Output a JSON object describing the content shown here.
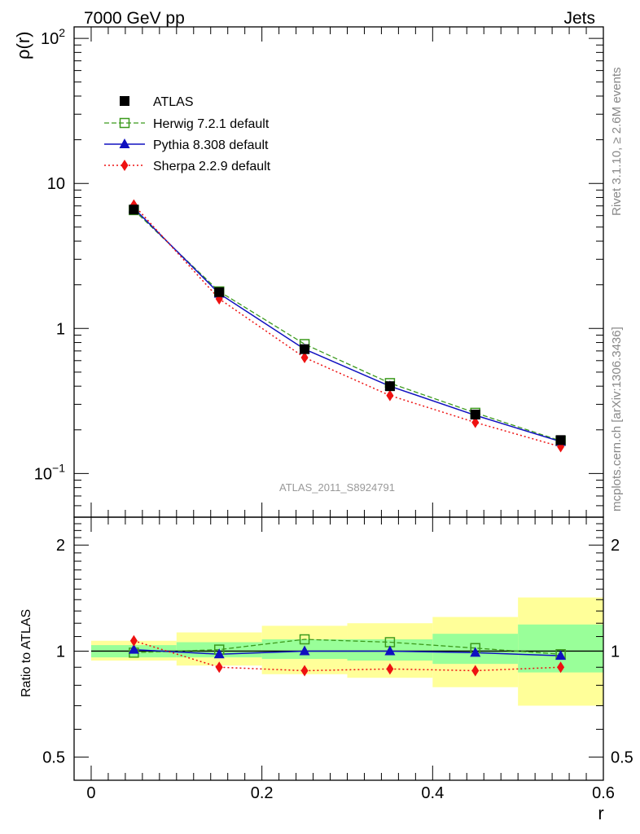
{
  "header": {
    "left": "7000 GeV pp",
    "right": "Jets"
  },
  "side_text": {
    "upper": "Rivet 3.1.10, ≥ 2.6M events",
    "lower": "mcplots.cern.ch [arXiv:1306.3436]"
  },
  "watermark": "ATLAS_2011_S8924791",
  "colors": {
    "data": "#000000",
    "herwig": "#3b9a1c",
    "pythia": "#1010c0",
    "sherpa": "#ee1111",
    "band_inner": "#99ff99",
    "band_outer": "#ffff99"
  },
  "chart_data": [
    {
      "type": "line",
      "ylabel": "ρ(r)",
      "yscale": "log",
      "ylim": [
        0.05,
        120
      ],
      "xlim": [
        -0.02,
        0.6
      ],
      "yticks": [
        {
          "value": 0.1,
          "label": "10",
          "sup": "−1"
        },
        {
          "value": 1,
          "label": "1",
          "sup": ""
        },
        {
          "value": 10,
          "label": "10",
          "sup": ""
        },
        {
          "value": 100,
          "label": "10",
          "sup": "2"
        }
      ],
      "legend_position": "top-left",
      "x": [
        0.05,
        0.15,
        0.25,
        0.35,
        0.45,
        0.55
      ],
      "series": [
        {
          "name": "ATLAS",
          "key": "data",
          "marker": "square",
          "values": [
            6.6,
            1.78,
            0.72,
            0.4,
            0.255,
            0.17
          ]
        },
        {
          "name": "Herwig 7.2.1 default",
          "key": "herwig",
          "marker": "open-square",
          "values": [
            6.55,
            1.8,
            0.78,
            0.42,
            0.262,
            0.168
          ]
        },
        {
          "name": "Pythia 8.308 default",
          "key": "pythia",
          "marker": "triangle",
          "values": [
            6.75,
            1.74,
            0.72,
            0.4,
            0.252,
            0.166
          ]
        },
        {
          "name": "Sherpa 2.2.9 default",
          "key": "sherpa",
          "marker": "diamond",
          "values": [
            7.1,
            1.6,
            0.63,
            0.345,
            0.225,
            0.153
          ]
        }
      ]
    },
    {
      "type": "line",
      "xlabel": "r",
      "ylabel": "Ratio to ATLAS",
      "ylim": [
        0.43,
        2.4
      ],
      "xlim": [
        -0.02,
        0.6
      ],
      "yticks": [
        {
          "value": 0.5,
          "label": "0.5"
        },
        {
          "value": 1,
          "label": "1"
        },
        {
          "value": 2,
          "label": "2"
        }
      ],
      "xticks": [
        {
          "value": 0,
          "label": "0"
        },
        {
          "value": 0.2,
          "label": "0.2"
        },
        {
          "value": 0.4,
          "label": "0.4"
        },
        {
          "value": 0.6,
          "label": "0.6"
        }
      ],
      "bands": [
        {
          "xmin": 0.0,
          "xmax": 0.1,
          "inner": [
            0.96,
            1.04
          ],
          "outer": [
            0.94,
            1.07
          ]
        },
        {
          "xmin": 0.1,
          "xmax": 0.2,
          "inner": [
            0.96,
            1.06
          ],
          "outer": [
            0.91,
            1.13
          ]
        },
        {
          "xmin": 0.2,
          "xmax": 0.3,
          "inner": [
            0.95,
            1.08
          ],
          "outer": [
            0.86,
            1.18
          ]
        },
        {
          "xmin": 0.3,
          "xmax": 0.4,
          "inner": [
            0.94,
            1.08
          ],
          "outer": [
            0.84,
            1.2
          ]
        },
        {
          "xmin": 0.4,
          "xmax": 0.5,
          "inner": [
            0.92,
            1.12
          ],
          "outer": [
            0.79,
            1.25
          ]
        },
        {
          "xmin": 0.5,
          "xmax": 0.6,
          "inner": [
            0.87,
            1.19
          ],
          "outer": [
            0.7,
            1.42
          ]
        }
      ],
      "x": [
        0.05,
        0.15,
        0.25,
        0.35,
        0.45,
        0.55
      ],
      "series": [
        {
          "name": "Herwig 7.2.1 default",
          "key": "herwig",
          "marker": "open-square",
          "values": [
            0.99,
            1.01,
            1.08,
            1.06,
            1.02,
            0.98
          ]
        },
        {
          "name": "Pythia 8.308 default",
          "key": "pythia",
          "marker": "triangle",
          "values": [
            1.01,
            0.98,
            1.0,
            1.0,
            0.99,
            0.97
          ]
        },
        {
          "name": "Sherpa 2.2.9 default",
          "key": "sherpa",
          "marker": "diamond",
          "values": [
            1.07,
            0.9,
            0.88,
            0.89,
            0.88,
            0.9
          ]
        }
      ]
    }
  ]
}
